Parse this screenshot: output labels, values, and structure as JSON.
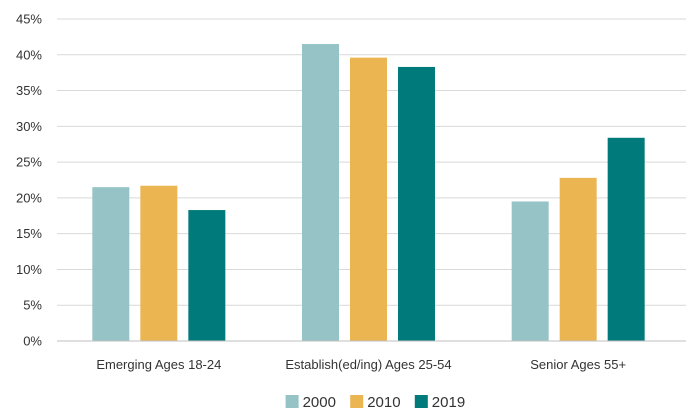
{
  "chart_data": {
    "type": "bar",
    "categories": [
      "Emerging Ages 18-24",
      "Establish(ed/ing) Ages 25-54",
      "Senior Ages 55+"
    ],
    "series": [
      {
        "name": "2000",
        "color": "#96c3c6",
        "values": [
          21.5,
          41.5,
          19.5
        ]
      },
      {
        "name": "2010",
        "color": "#ebb552",
        "values": [
          21.7,
          39.6,
          22.8
        ]
      },
      {
        "name": "2019",
        "color": "#007a7a",
        "values": [
          18.3,
          38.3,
          28.4
        ]
      }
    ],
    "ylim": [
      0,
      45
    ],
    "yticks": [
      0,
      5,
      10,
      15,
      20,
      25,
      30,
      35,
      40,
      45
    ],
    "ytick_labels": [
      "0%",
      "5%",
      "10%",
      "15%",
      "20%",
      "25%",
      "30%",
      "35%",
      "40%",
      "45%"
    ],
    "grid": true,
    "legend_position": "bottom"
  }
}
